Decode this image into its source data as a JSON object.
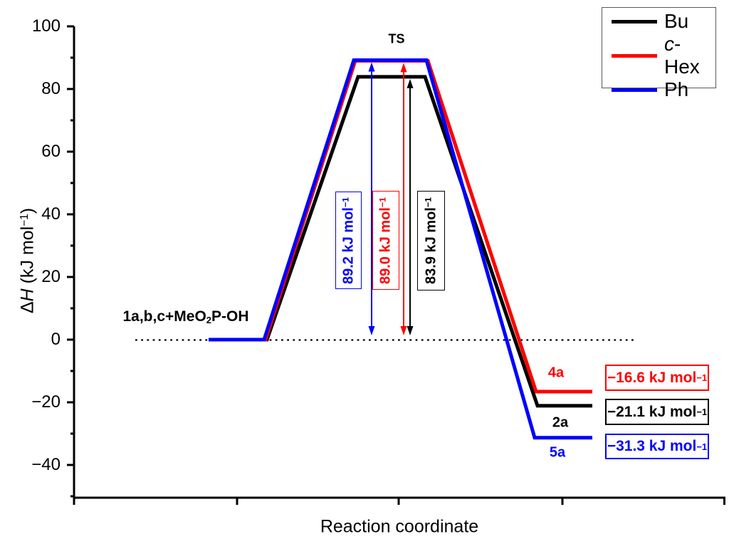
{
  "chart_data": {
    "type": "line",
    "subtype": "reaction-energy-profile",
    "xlabel": "Reaction coordinate",
    "ylabel": "ΔH (kJ mol⁻¹)",
    "ylim": [
      -50,
      100
    ],
    "y_major_ticks": [
      100,
      80,
      60,
      40,
      20,
      0,
      -20,
      -40
    ],
    "x_stages": [
      "reactants",
      "transition state",
      "products"
    ],
    "reactant_level_label": "1a,b,c+MeO₂P-OH",
    "ts_label": "TS",
    "zero_line": {
      "value": 0,
      "style": "dotted"
    },
    "grid": false,
    "legend_position": "top-right",
    "series": [
      {
        "name": "Bu",
        "color": "#000000",
        "reactant": 0.0,
        "ts": 83.9,
        "product": -21.1,
        "barrier_label": "83.9 kJ mol⁻¹",
        "product_name": "2a",
        "product_value_label": "−21.1 kJ mol⁻¹"
      },
      {
        "name": "c-Hex",
        "color": "#ff0000",
        "reactant": 0.0,
        "ts": 89.0,
        "product": -16.6,
        "barrier_label": "89.0 kJ mol⁻¹",
        "product_name": "4a",
        "product_value_label": "−16.6 kJ mol⁻¹"
      },
      {
        "name": "Ph",
        "color": "#0000ff",
        "reactant": 0.0,
        "ts": 89.2,
        "product": -31.3,
        "barrier_label": "89.2 kJ mol⁻¹",
        "product_name": "5a",
        "product_value_label": "−31.3 kJ mol⁻¹"
      }
    ]
  },
  "y_axis": {
    "title_delta": "Δ",
    "title_h": "H",
    "title_unit": " (kJ mol",
    "title_sup": "−1",
    "title_close": ")",
    "tick_labels": [
      "100",
      "80",
      "60",
      "40",
      "20",
      "0",
      "−20",
      "−40"
    ]
  },
  "x_axis": {
    "label": "Reaction coordinate"
  },
  "legend": {
    "items": [
      {
        "pre_italic": "",
        "label": "Bu",
        "color": "#000000"
      },
      {
        "pre_italic": "c",
        "label": "-Hex",
        "color": "#ff0000"
      },
      {
        "pre_italic": "",
        "label": "Ph",
        "color": "#0000ff"
      }
    ]
  },
  "annotations": {
    "ts_label": "TS",
    "reactant_pre": "1a,b,c+MeO",
    "reactant_sub": "2",
    "reactant_post": "P-OH",
    "barriers": [
      {
        "series": "Ph",
        "text": "89.2 kJ mol",
        "sup": "−1",
        "color": "#0000ff"
      },
      {
        "series": "c-Hex",
        "text": "89.0 kJ mol",
        "sup": "−1",
        "color": "#ff0000"
      },
      {
        "series": "Bu",
        "text": "83.9 kJ mol",
        "sup": "−1",
        "color": "#000000"
      }
    ],
    "products": [
      {
        "name": "4a",
        "text": "−16.6 kJ mol",
        "sup": "−1",
        "color": "#ff0000"
      },
      {
        "name": "2a",
        "text": "−21.1 kJ mol",
        "sup": "−1",
        "color": "#000000"
      },
      {
        "name": "5a",
        "text": "−31.3 kJ mol",
        "sup": "−1",
        "color": "#0000ff"
      }
    ]
  }
}
